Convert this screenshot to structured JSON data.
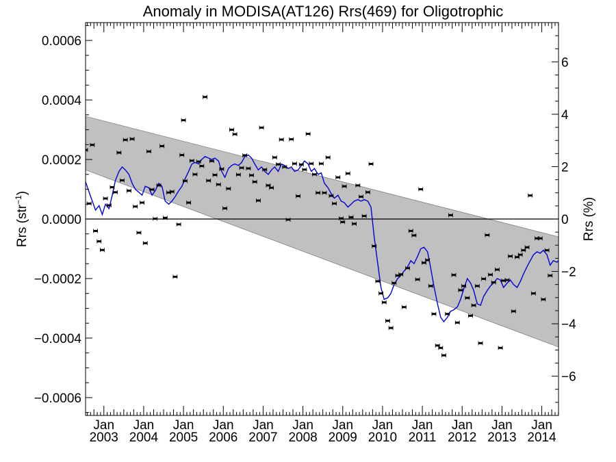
{
  "chart_data": {
    "type": "scatter",
    "title": "Anomaly in MODISA(AT126) Rrs(469) for Oligotrophic",
    "ylabel": "Rrs (str⁻¹)",
    "y2label": "Rrs (%)",
    "xlabel": "",
    "x_unit": "decimal year",
    "xlim": [
      2002.54,
      2014.42
    ],
    "ylim": [
      -0.00066,
      0.00066
    ],
    "y2lim": [
      -7.5,
      7.5
    ],
    "y_ticks": [
      {
        "value": 0.0006,
        "label": "0.0006"
      },
      {
        "value": 0.0004,
        "label": "0.0004"
      },
      {
        "value": 0.0002,
        "label": "0.0002"
      },
      {
        "value": 0.0,
        "label": "0.0000"
      },
      {
        "value": -0.0002,
        "label": "−0.0002"
      },
      {
        "value": -0.0004,
        "label": "−0.0004"
      },
      {
        "value": -0.0006,
        "label": "−0.0006"
      }
    ],
    "y2_ticks": [
      {
        "value": 6,
        "label": "6"
      },
      {
        "value": 4,
        "label": "4"
      },
      {
        "value": 2,
        "label": "2"
      },
      {
        "value": 0,
        "label": "0"
      },
      {
        "value": -2,
        "label": "−2"
      },
      {
        "value": -4,
        "label": "−4"
      },
      {
        "value": -6,
        "label": "−6"
      }
    ],
    "x_ticks": [
      {
        "value": 2003.0,
        "month": "Jan",
        "year": "2003"
      },
      {
        "value": 2004.0,
        "month": "Jan",
        "year": "2004"
      },
      {
        "value": 2005.0,
        "month": "Jan",
        "year": "2005"
      },
      {
        "value": 2006.0,
        "month": "Jan",
        "year": "2006"
      },
      {
        "value": 2007.0,
        "month": "Jan",
        "year": "2007"
      },
      {
        "value": 2008.0,
        "month": "Jan",
        "year": "2008"
      },
      {
        "value": 2009.0,
        "month": "Jan",
        "year": "2009"
      },
      {
        "value": 2010.0,
        "month": "Jan",
        "year": "2010"
      },
      {
        "value": 2011.0,
        "month": "Jan",
        "year": "2011"
      },
      {
        "value": 2012.0,
        "month": "Jan",
        "year": "2012"
      },
      {
        "value": 2013.0,
        "month": "Jan",
        "year": "2013"
      },
      {
        "value": 2014.0,
        "month": "Jan",
        "year": "2014"
      }
    ],
    "zero_line": 0.0,
    "band": {
      "upper_start": [
        2002.54,
        0.000345
      ],
      "upper_end": [
        2014.42,
        -6e-05
      ],
      "lower_start": [
        2002.54,
        0.000165
      ],
      "lower_end": [
        2014.42,
        -0.00043
      ]
    },
    "points": [
      {
        "x": 2002.54,
        "y": 0.000232
      },
      {
        "x": 2002.63,
        "y": 5.2e-05
      },
      {
        "x": 2002.71,
        "y": 0.000249
      },
      {
        "x": 2002.79,
        "y": -4e-05
      },
      {
        "x": 2002.88,
        "y": -7.5e-05
      },
      {
        "x": 2002.96,
        "y": -0.000104
      },
      {
        "x": 2003.04,
        "y": 6.9e-05
      },
      {
        "x": 2003.13,
        "y": 4.6e-05
      },
      {
        "x": 2003.21,
        "y": 0.000107
      },
      {
        "x": 2003.29,
        "y": 9e-05
      },
      {
        "x": 2003.38,
        "y": 0.000223
      },
      {
        "x": 2003.46,
        "y": 0.00013
      },
      {
        "x": 2003.54,
        "y": 0.000266
      },
      {
        "x": 2003.63,
        "y": 9.5e-05
      },
      {
        "x": 2003.71,
        "y": 0.000269
      },
      {
        "x": 2003.79,
        "y": 4.2e-05
      },
      {
        "x": 2003.88,
        "y": -4.6e-05
      },
      {
        "x": 2003.96,
        "y": 5.5e-05
      },
      {
        "x": 2004.04,
        "y": -8.1e-05
      },
      {
        "x": 2004.13,
        "y": 0.000227
      },
      {
        "x": 2004.21,
        "y": 9.9e-05
      },
      {
        "x": 2004.29,
        "y": 1e-06
      },
      {
        "x": 2004.38,
        "y": 0.000113
      },
      {
        "x": 2004.46,
        "y": 0.000245
      },
      {
        "x": 2004.54,
        "y": 4e-06
      },
      {
        "x": 2004.63,
        "y": 8.9e-05
      },
      {
        "x": 2004.71,
        "y": 9.2e-05
      },
      {
        "x": 2004.79,
        "y": -0.000194
      },
      {
        "x": 2004.88,
        "y": -1.8e-05
      },
      {
        "x": 2004.96,
        "y": 0.000215
      },
      {
        "x": 2005.0,
        "y": 0.000332
      },
      {
        "x": 2005.04,
        "y": 0.000128
      },
      {
        "x": 2005.13,
        "y": 5.5e-05
      },
      {
        "x": 2005.21,
        "y": 0.000196
      },
      {
        "x": 2005.29,
        "y": 0.00015
      },
      {
        "x": 2005.38,
        "y": 0.000193
      },
      {
        "x": 2005.46,
        "y": 0.000178
      },
      {
        "x": 2005.54,
        "y": 0.00041
      },
      {
        "x": 2005.63,
        "y": 0.000129
      },
      {
        "x": 2005.71,
        "y": 0.000195
      },
      {
        "x": 2005.79,
        "y": 0.000148
      },
      {
        "x": 2005.88,
        "y": 0.000116
      },
      {
        "x": 2005.96,
        "y": 0.000168
      },
      {
        "x": 2006.04,
        "y": 3.6e-05
      },
      {
        "x": 2006.13,
        "y": 0.000102
      },
      {
        "x": 2006.21,
        "y": 0.0003
      },
      {
        "x": 2006.29,
        "y": 0.000285
      },
      {
        "x": 2006.38,
        "y": 0.000149
      },
      {
        "x": 2006.46,
        "y": 0.000172
      },
      {
        "x": 2006.54,
        "y": 0.000214
      },
      {
        "x": 2006.63,
        "y": 0.00017
      },
      {
        "x": 2006.71,
        "y": 0.000147
      },
      {
        "x": 2006.79,
        "y": 0.000125
      },
      {
        "x": 2006.88,
        "y": 6.2e-05
      },
      {
        "x": 2006.96,
        "y": 0.000307
      },
      {
        "x": 2007.04,
        "y": 0.000166
      },
      {
        "x": 2007.13,
        "y": 0.000113
      },
      {
        "x": 2007.21,
        "y": 0.000105
      },
      {
        "x": 2007.29,
        "y": 0.000207
      },
      {
        "x": 2007.38,
        "y": 0.000184
      },
      {
        "x": 2007.46,
        "y": 0.000267
      },
      {
        "x": 2007.54,
        "y": 0.000175
      },
      {
        "x": 2007.63,
        "y": -2e-06
      },
      {
        "x": 2007.71,
        "y": 0.000268
      },
      {
        "x": 2007.79,
        "y": 0.000186
      },
      {
        "x": 2007.88,
        "y": 7.7e-05
      },
      {
        "x": 2007.96,
        "y": 0.000183
      },
      {
        "x": 2008.04,
        "y": 0.000166
      },
      {
        "x": 2008.13,
        "y": 0.000286
      },
      {
        "x": 2008.21,
        "y": 0.000186
      },
      {
        "x": 2008.29,
        "y": 0.00015
      },
      {
        "x": 2008.38,
        "y": 8.8e-05
      },
      {
        "x": 2008.46,
        "y": 0.000186
      },
      {
        "x": 2008.54,
        "y": 8.8e-05
      },
      {
        "x": 2008.63,
        "y": 0.000207
      },
      {
        "x": 2008.71,
        "y": 7.8e-05
      },
      {
        "x": 2008.79,
        "y": 5.2e-05
      },
      {
        "x": 2008.88,
        "y": 0.00014
      },
      {
        "x": 2008.96,
        "y": 2e-06
      },
      {
        "x": 2009.0,
        "y": -1e-05
      },
      {
        "x": 2009.04,
        "y": 0.00011
      },
      {
        "x": 2009.13,
        "y": 0.000153
      },
      {
        "x": 2009.21,
        "y": 6e-06
      },
      {
        "x": 2009.29,
        "y": -1.6e-05
      },
      {
        "x": 2009.38,
        "y": 0.000113
      },
      {
        "x": 2009.46,
        "y": 7.5e-05
      },
      {
        "x": 2009.54,
        "y": 1e-05
      },
      {
        "x": 2009.63,
        "y": 9e-05
      },
      {
        "x": 2009.71,
        "y": 0.000185
      },
      {
        "x": 2009.79,
        "y": -9.1e-05
      },
      {
        "x": 2009.88,
        "y": -0.000209
      },
      {
        "x": 2009.96,
        "y": -0.00025
      },
      {
        "x": 2010.04,
        "y": -0.00028
      },
      {
        "x": 2010.13,
        "y": -0.000342
      },
      {
        "x": 2010.21,
        "y": -0.000366
      },
      {
        "x": 2010.29,
        "y": -0.000215
      },
      {
        "x": 2010.38,
        "y": -0.00019
      },
      {
        "x": 2010.46,
        "y": -0.000186
      },
      {
        "x": 2010.54,
        "y": -0.000296
      },
      {
        "x": 2010.63,
        "y": -0.000165
      },
      {
        "x": 2010.71,
        "y": -4e-05
      },
      {
        "x": 2010.79,
        "y": -5.5e-05
      },
      {
        "x": 2010.88,
        "y": -0.000203
      },
      {
        "x": 2010.96,
        "y": 0.0001
      },
      {
        "x": 2011.04,
        "y": -0.000147
      },
      {
        "x": 2011.13,
        "y": -0.000138
      },
      {
        "x": 2011.21,
        "y": -0.000225
      },
      {
        "x": 2011.29,
        "y": -0.000319
      },
      {
        "x": 2011.38,
        "y": -0.000425
      },
      {
        "x": 2011.46,
        "y": -0.000433
      },
      {
        "x": 2011.54,
        "y": -0.000458
      },
      {
        "x": 2011.63,
        "y": -0.000319
      },
      {
        "x": 2011.71,
        "y": 1.3e-05
      },
      {
        "x": 2011.79,
        "y": -0.000188
      },
      {
        "x": 2011.88,
        "y": -0.000348
      },
      {
        "x": 2011.96,
        "y": -0.000239
      },
      {
        "x": 2012.04,
        "y": -0.000225
      },
      {
        "x": 2012.13,
        "y": -0.000265
      },
      {
        "x": 2012.21,
        "y": -0.000325
      },
      {
        "x": 2012.29,
        "y": -0.00029
      },
      {
        "x": 2012.38,
        "y": -0.000225
      },
      {
        "x": 2012.46,
        "y": -0.000417
      },
      {
        "x": 2012.54,
        "y": -0.000201
      },
      {
        "x": 2012.63,
        "y": -5.4e-05
      },
      {
        "x": 2012.71,
        "y": -0.000187
      },
      {
        "x": 2012.79,
        "y": -0.000213
      },
      {
        "x": 2012.88,
        "y": -0.00017
      },
      {
        "x": 2012.96,
        "y": -0.000433
      },
      {
        "x": 2013.04,
        "y": -0.000207
      },
      {
        "x": 2013.13,
        "y": -0.000205
      },
      {
        "x": 2013.21,
        "y": -0.000125
      },
      {
        "x": 2013.29,
        "y": -0.00031
      },
      {
        "x": 2013.38,
        "y": -0.000128
      },
      {
        "x": 2013.46,
        "y": -0.00012
      },
      {
        "x": 2013.54,
        "y": -0.000105
      },
      {
        "x": 2013.63,
        "y": -9.5e-05
      },
      {
        "x": 2013.71,
        "y": 7.9e-05
      },
      {
        "x": 2013.79,
        "y": -0.00025
      },
      {
        "x": 2013.88,
        "y": -6.5e-05
      },
      {
        "x": 2013.96,
        "y": -6.5e-05
      },
      {
        "x": 2014.04,
        "y": -0.00027
      },
      {
        "x": 2014.13,
        "y": -0.000105
      },
      {
        "x": 2014.21,
        "y": -0.00019
      }
    ],
    "series": [
      {
        "color": "#0000d8",
        "x": [
          2002.54,
          2002.63,
          2002.71,
          2002.79,
          2002.88,
          2002.96,
          2003.04,
          2003.13,
          2003.21,
          2003.29,
          2003.38,
          2003.46,
          2003.54,
          2003.63,
          2003.71,
          2003.79,
          2003.88,
          2003.96,
          2004.04,
          2004.13,
          2004.21,
          2004.29,
          2004.38,
          2004.46,
          2004.54,
          2004.63,
          2004.71,
          2004.79,
          2004.88,
          2004.96,
          2005.04,
          2005.13,
          2005.21,
          2005.29,
          2005.38,
          2005.46,
          2005.54,
          2005.63,
          2005.71,
          2005.79,
          2005.88,
          2005.96,
          2006.04,
          2006.13,
          2006.21,
          2006.29,
          2006.38,
          2006.46,
          2006.54,
          2006.63,
          2006.71,
          2006.79,
          2006.88,
          2006.96,
          2007.04,
          2007.13,
          2007.21,
          2007.29,
          2007.38,
          2007.46,
          2007.54,
          2007.63,
          2007.71,
          2007.79,
          2007.88,
          2007.96,
          2008.04,
          2008.13,
          2008.21,
          2008.29,
          2008.38,
          2008.46,
          2008.54,
          2008.63,
          2008.71,
          2008.79,
          2008.88,
          2008.96,
          2009.04,
          2009.13,
          2009.21,
          2009.29,
          2009.38,
          2009.46,
          2009.54,
          2009.63,
          2009.71,
          2009.79,
          2009.88,
          2009.96,
          2010.04,
          2010.13,
          2010.21,
          2010.29,
          2010.38,
          2010.46,
          2010.54,
          2010.63,
          2010.71,
          2010.79,
          2010.88,
          2010.96,
          2011.04,
          2011.13,
          2011.21,
          2011.29,
          2011.38,
          2011.46,
          2011.54,
          2011.63,
          2011.71,
          2011.79,
          2011.88,
          2011.96,
          2012.04,
          2012.13,
          2012.21,
          2012.29,
          2012.38,
          2012.46,
          2012.54,
          2012.63,
          2012.71,
          2012.79,
          2012.88,
          2012.96,
          2013.04,
          2013.13,
          2013.21,
          2013.29,
          2013.38,
          2013.46,
          2013.54,
          2013.63,
          2013.71,
          2013.79,
          2013.88,
          2013.96,
          2014.04,
          2014.13,
          2014.21,
          2014.29,
          2014.38,
          2014.42
        ],
        "y": [
          0.000125,
          9e-05,
          6e-05,
          3e-05,
          4.5e-05,
          1.5e-05,
          5e-05,
          3.5e-05,
          8e-05,
          0.00013,
          0.00016,
          0.000175,
          0.000165,
          0.00015,
          0.00012,
          0.0001,
          9e-05,
          8e-05,
          0.00011,
          0.000105,
          8e-05,
          9.5e-05,
          0.00012,
          0.00011,
          6e-05,
          5e-05,
          6e-05,
          7.5e-05,
          9.5e-05,
          0.00011,
          0.000135,
          0.00016,
          0.000185,
          0.00019,
          0.000185,
          0.0002,
          0.00021,
          0.000205,
          0.0002,
          0.000205,
          0.000195,
          0.00016,
          0.00014,
          0.00017,
          0.00018,
          0.000185,
          0.00018,
          0.00019,
          0.00021,
          0.000215,
          0.000205,
          0.000185,
          0.000165,
          0.000175,
          0.00016,
          0.00015,
          0.000165,
          0.000175,
          0.00016,
          0.000185,
          0.00018,
          0.00017,
          0.000175,
          0.00016,
          0.000165,
          0.00018,
          0.000195,
          0.000185,
          0.00016,
          0.00017,
          0.00015,
          0.000155,
          0.00012,
          0.000105,
          8.5e-05,
          7e-05,
          8e-05,
          6e-05,
          5.5e-05,
          4e-05,
          5e-05,
          6e-05,
          6.5e-05,
          6e-05,
          6.5e-05,
          6e-05,
          4e-05,
          -6e-05,
          -0.00015,
          -0.00023,
          -0.00027,
          -0.000265,
          -0.00025,
          -0.00022,
          -0.0002,
          -0.00019,
          -0.000175,
          -0.00016,
          -0.00014,
          -0.00015,
          -0.000125,
          -0.0001,
          -9.5e-05,
          -0.00011,
          -0.000165,
          -0.000225,
          -0.000285,
          -0.00033,
          -0.000345,
          -0.00033,
          -0.00031,
          -0.000305,
          -0.000295,
          -0.00027,
          -0.000235,
          -0.0002,
          -0.000215,
          -0.00024,
          -0.000285,
          -0.00029,
          -0.00026,
          -0.00024,
          -0.000225,
          -0.000215,
          -0.0002,
          -0.000205,
          -0.00023,
          -0.000215,
          -0.000205,
          -0.00022,
          -0.00023,
          -0.00021,
          -0.000185,
          -0.00016,
          -0.00014,
          -0.00012,
          -0.00011,
          -0.000115,
          -0.000105,
          -0.00012,
          -0.000155,
          -0.00014,
          -0.000145,
          -0.00014
        ]
      }
    ],
    "grid": false,
    "legend": "none"
  }
}
